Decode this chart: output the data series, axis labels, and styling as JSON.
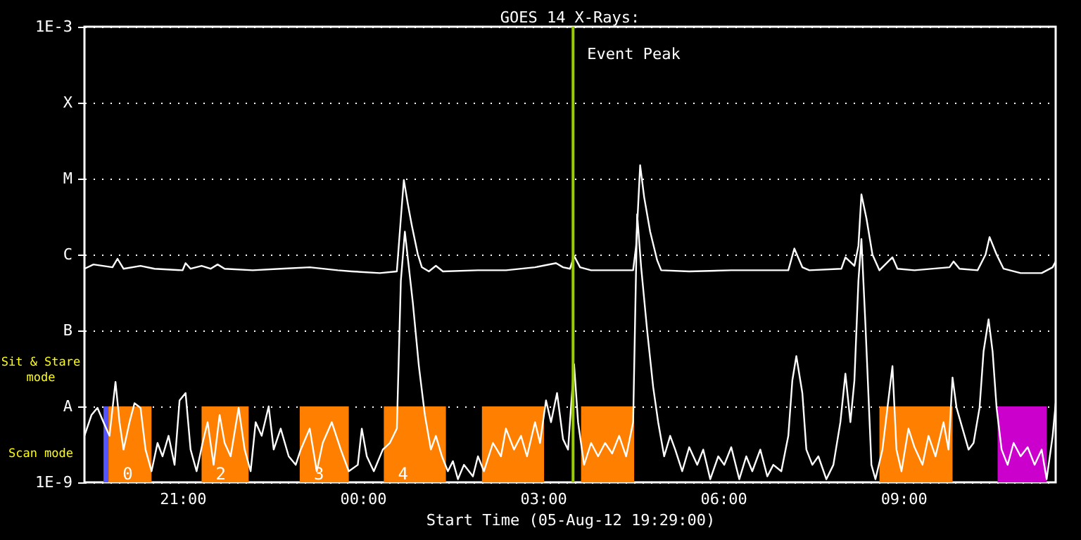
{
  "chart_data": {
    "type": "line",
    "title": "GOES 14 X-Rays:",
    "xlabel": "Start Time (05-Aug-12 19:29:00)",
    "xlim": [
      "--08-05T19:22",
      "--08-06T11:32"
    ],
    "xticks": [
      {
        "value": "--08-05T21:00",
        "label": "21:00"
      },
      {
        "value": "--08-06T00:00",
        "label": "00:00"
      },
      {
        "value": "--08-06T03:00",
        "label": "03:00"
      },
      {
        "value": "--08-06T06:00",
        "label": "06:00"
      },
      {
        "value": "--08-06T09:00",
        "label": "09:00"
      }
    ],
    "ylim": [
      1e-09,
      0.001
    ],
    "yticks": [
      {
        "value": 1e-09,
        "label": "1E-9"
      },
      {
        "value": 1e-08,
        "label": "A"
      },
      {
        "value": 1e-07,
        "label": "B"
      },
      {
        "value": 1e-06,
        "label": "C"
      },
      {
        "value": 1e-05,
        "label": "M"
      },
      {
        "value": 0.0001,
        "label": "X"
      },
      {
        "value": 0.001,
        "label": "1E-3"
      }
    ],
    "log": "y",
    "grid": "y",
    "series": [
      {
        "color": "#ffffff",
        "x": [
          "--08-05T19:22",
          "--08-05T19:31",
          "--08-05T19:50",
          "--08-05T19:55",
          "--08-05T20:01",
          "--08-05T20:18",
          "--08-05T20:32",
          "--08-05T21:00",
          "--08-05T21:03",
          "--08-05T21:08",
          "--08-05T21:19",
          "--08-05T21:28",
          "--08-05T21:35",
          "--08-05T21:42",
          "--08-05T22:10",
          "--08-05T22:38",
          "--08-05T23:07",
          "--08-05T23:35",
          "--08-05T23:49",
          "--08-06T00:17",
          "--08-06T00:34",
          "--08-06T00:38",
          "--08-06T00:41",
          "--08-06T00:45",
          "--08-06T00:49",
          "--08-06T00:55",
          "--08-06T00:59",
          "--08-06T01:06",
          "--08-06T01:13",
          "--08-06T01:20",
          "--08-06T01:55",
          "--08-06T02:23",
          "--08-06T02:52",
          "--08-06T03:13",
          "--08-06T03:20",
          "--08-06T03:27",
          "--08-06T03:31",
          "--08-06T03:37",
          "--08-06T03:48",
          "--08-06T04:30",
          "--08-06T04:33",
          "--08-06T04:37",
          "--08-06T04:41",
          "--08-06T04:47",
          "--08-06T04:54",
          "--08-06T04:58",
          "--08-06T05:26",
          "--08-06T06:08",
          "--08-06T07:05",
          "--08-06T07:11",
          "--08-06T07:19",
          "--08-06T07:26",
          "--08-06T07:58",
          "--08-06T08:02",
          "--08-06T08:11",
          "--08-06T08:15",
          "--08-06T08:18",
          "--08-06T08:23",
          "--08-06T08:29",
          "--08-06T08:36",
          "--08-06T08:49",
          "--08-06T08:54",
          "--08-06T09:11",
          "--08-06T09:46",
          "--08-06T09:50",
          "--08-06T09:56",
          "--08-06T10:14",
          "--08-06T10:22",
          "--08-06T10:26",
          "--08-06T10:33",
          "--08-06T10:40",
          "--08-06T10:57",
          "--08-06T11:18",
          "--08-06T11:29",
          "--08-06T11:32"
        ],
        "values": [
          6.5e-07,
          7.4e-07,
          6.8e-07,
          8.8e-07,
          6.5e-07,
          7.1e-07,
          6.5e-07,
          6.2e-07,
          7.7e-07,
          6.5e-07,
          7.1e-07,
          6.5e-07,
          7.4e-07,
          6.5e-07,
          6.2e-07,
          6.5e-07,
          6.8e-07,
          6.2e-07,
          6e-07,
          5.7e-07,
          6e-07,
          3e-06,
          9.6e-06,
          4.6e-06,
          2.4e-06,
          1e-06,
          6.8e-07,
          6e-07,
          7.1e-07,
          6e-07,
          6.2e-07,
          6.2e-07,
          6.8e-07,
          7.7e-07,
          6.8e-07,
          6.5e-07,
          9.6e-07,
          6.8e-07,
          6.2e-07,
          6.2e-07,
          1.3e-06,
          1.5e-05,
          5.7e-06,
          2e-06,
          8.4e-07,
          6.2e-07,
          6e-07,
          6.2e-07,
          6.2e-07,
          1.2e-06,
          6.8e-07,
          6.2e-07,
          6.5e-07,
          9.2e-07,
          7.1e-07,
          1.3e-06,
          6.2e-06,
          3e-06,
          1e-06,
          6.2e-07,
          9.2e-07,
          6.5e-07,
          6.2e-07,
          6.8e-07,
          8.1e-07,
          6.5e-07,
          6.2e-07,
          1e-06,
          1.7e-06,
          1e-06,
          6.5e-07,
          5.7e-07,
          5.7e-07,
          6.8e-07,
          8.1e-07
        ]
      },
      {
        "color": "#ffffff",
        "x": [
          "--08-05T19:22",
          "--08-05T19:29",
          "--08-05T19:35",
          "--08-05T19:41",
          "--08-05T19:47",
          "--08-05T19:53",
          "--08-05T19:57",
          "--08-05T20:01",
          "--08-05T20:07",
          "--08-05T20:12",
          "--08-05T20:18",
          "--08-05T20:23",
          "--08-05T20:29",
          "--08-05T20:35",
          "--08-05T20:40",
          "--08-05T20:46",
          "--08-05T20:52",
          "--08-05T20:57",
          "--08-05T21:03",
          "--08-05T21:08",
          "--08-05T21:14",
          "--08-05T21:20",
          "--08-05T21:25",
          "--08-05T21:31",
          "--08-05T21:37",
          "--08-05T21:42",
          "--08-05T21:48",
          "--08-05T21:56",
          "--08-05T22:02",
          "--08-05T22:08",
          "--08-05T22:13",
          "--08-05T22:19",
          "--08-05T22:26",
          "--08-05T22:31",
          "--08-05T22:38",
          "--08-05T22:46",
          "--08-05T22:53",
          "--08-05T22:58",
          "--08-05T23:07",
          "--08-05T23:14",
          "--08-05T23:20",
          "--08-05T23:29",
          "--08-05T23:38",
          "--08-05T23:46",
          "--08-05T23:55",
          "--08-05T23:59",
          "--08-06T00:04",
          "--08-06T00:11",
          "--08-06T00:20",
          "--08-06T00:27",
          "--08-06T00:34",
          "--08-06T00:38",
          "--08-06T00:42",
          "--08-06T00:46",
          "--08-06T00:50",
          "--08-06T00:56",
          "--08-06T01:02",
          "--08-06T01:08",
          "--08-06T01:13",
          "--08-06T01:19",
          "--08-06T01:25",
          "--08-06T01:30",
          "--08-06T01:35",
          "--08-06T01:41",
          "--08-06T01:50",
          "--08-06T01:55",
          "--08-06T02:01",
          "--08-06T02:10",
          "--08-06T02:18",
          "--08-06T02:23",
          "--08-06T02:31",
          "--08-06T02:38",
          "--08-06T02:44",
          "--08-06T02:52",
          "--08-06T02:57",
          "--08-06T03:03",
          "--08-06T03:08",
          "--08-06T03:14",
          "--08-06T03:20",
          "--08-06T03:25",
          "--08-06T03:31",
          "--08-06T03:35",
          "--08-06T03:41",
          "--08-06T03:48",
          "--08-06T03:55",
          "--08-06T04:02",
          "--08-06T04:09",
          "--08-06T04:16",
          "--08-06T04:23",
          "--08-06T04:30",
          "--08-06T04:34",
          "--08-06T04:38",
          "--08-06T04:44",
          "--08-06T04:50",
          "--08-06T04:55",
          "--08-06T05:01",
          "--08-06T05:07",
          "--08-06T05:12",
          "--08-06T05:19",
          "--08-06T05:26",
          "--08-06T05:34",
          "--08-06T05:40",
          "--08-06T05:47",
          "--08-06T05:55",
          "--08-06T06:01",
          "--08-06T06:08",
          "--08-06T06:16",
          "--08-06T06:23",
          "--08-06T06:29",
          "--08-06T06:37",
          "--08-06T06:44",
          "--08-06T06:50",
          "--08-06T06:58",
          "--08-06T07:05",
          "--08-06T07:09",
          "--08-06T07:13",
          "--08-06T07:19",
          "--08-06T07:23",
          "--08-06T07:29",
          "--08-06T07:35",
          "--08-06T07:43",
          "--08-06T07:50",
          "--08-06T07:57",
          "--08-06T08:02",
          "--08-06T08:07",
          "--08-06T08:11",
          "--08-06T08:15",
          "--08-06T08:18",
          "--08-06T08:22",
          "--08-06T08:28",
          "--08-06T08:32",
          "--08-06T08:39",
          "--08-06T08:44",
          "--08-06T08:49",
          "--08-06T08:53",
          "--08-06T08:58",
          "--08-06T09:05",
          "--08-06T09:11",
          "--08-06T09:19",
          "--08-06T09:25",
          "--08-06T09:32",
          "--08-06T09:40",
          "--08-06T09:45",
          "--08-06T09:49",
          "--08-06T09:53",
          "--08-06T09:59",
          "--08-06T10:05",
          "--08-06T10:10",
          "--08-06T10:16",
          "--08-06T10:20",
          "--08-06T10:25",
          "--08-06T10:29",
          "--08-06T10:33",
          "--08-06T10:38",
          "--08-06T10:44",
          "--08-06T10:50",
          "--08-06T10:57",
          "--08-06T11:04",
          "--08-06T11:11",
          "--08-06T11:18",
          "--08-06T11:23",
          "--08-06T11:29",
          "--08-06T11:32"
        ],
        "values": [
          4.1e-09,
          7.7e-09,
          9.6e-09,
          6.2e-09,
          4.1e-09,
          2.1e-08,
          6.2e-09,
          2.7e-09,
          6.2e-09,
          1.1e-08,
          9.6e-09,
          2.7e-09,
          1.4e-09,
          3.3e-09,
          2.2e-09,
          4.1e-09,
          1.7e-09,
          1.2e-08,
          1.5e-08,
          2.7e-09,
          1.4e-09,
          3.3e-09,
          6.2e-09,
          1.7e-09,
          7.7e-09,
          3.3e-09,
          2.2e-09,
          9.6e-09,
          2.7e-09,
          1.4e-09,
          6.2e-09,
          4.1e-09,
          1e-08,
          2.7e-09,
          5.1e-09,
          2.2e-09,
          1.7e-09,
          2.7e-09,
          5.1e-09,
          1.4e-09,
          3.3e-09,
          6.2e-09,
          2.7e-09,
          1.4e-09,
          1.7e-09,
          5.1e-09,
          2.2e-09,
          1.4e-09,
          2.7e-09,
          3.3e-09,
          5.1e-09,
          4.5e-07,
          2e-06,
          6.8e-07,
          2.3e-07,
          3.4e-08,
          7.7e-09,
          2.7e-09,
          4.1e-09,
          2.2e-09,
          1.4e-09,
          1.9e-09,
          1.1e-09,
          1.7e-09,
          1.2e-09,
          2.2e-09,
          1.4e-09,
          3.3e-09,
          2.2e-09,
          5.1e-09,
          2.7e-09,
          4.1e-09,
          2.2e-09,
          6.2e-09,
          3.3e-09,
          1.2e-08,
          6.2e-09,
          1.5e-08,
          3.7e-09,
          2.7e-09,
          3.6e-08,
          6.2e-09,
          1.7e-09,
          3.3e-09,
          2.2e-09,
          3.3e-09,
          2.4e-09,
          4.1e-09,
          2.2e-09,
          6.2e-09,
          3.4e-06,
          6.8e-07,
          1e-07,
          1.8e-08,
          6.2e-09,
          2.2e-09,
          4.1e-09,
          2.7e-09,
          1.4e-09,
          2.9e-09,
          1.7e-09,
          2.7e-09,
          1.1e-09,
          2.2e-09,
          1.7e-09,
          2.9e-09,
          1.1e-09,
          2.2e-09,
          1.4e-09,
          2.7e-09,
          1.2e-09,
          1.7e-09,
          1.4e-09,
          4.1e-09,
          2.2e-08,
          4.6e-08,
          1.5e-08,
          2.7e-09,
          1.7e-09,
          2.2e-09,
          1.1e-09,
          1.7e-09,
          6.2e-09,
          2.7e-08,
          6.2e-09,
          2.2e-08,
          4.5e-07,
          1.6e-06,
          1.2e-07,
          1.7e-09,
          1.1e-09,
          2.7e-09,
          9.6e-09,
          3.4e-08,
          2.7e-09,
          1.4e-09,
          5.1e-09,
          2.9e-09,
          1.7e-09,
          4.1e-09,
          2.2e-09,
          6.2e-09,
          2.7e-09,
          2.4e-08,
          9.6e-09,
          5.1e-09,
          2.7e-09,
          3.3e-09,
          9.6e-09,
          5.3e-08,
          1.4e-07,
          5.3e-08,
          9.6e-09,
          2.7e-09,
          1.7e-09,
          3.3e-09,
          2.2e-09,
          2.9e-09,
          1.7e-09,
          2.7e-09,
          1.1e-09,
          4.1e-09,
          1.1e-08
        ]
      }
    ],
    "bands": [
      {
        "axis": "x",
        "from": "--08-05T19:41",
        "to": "--08-05T19:46",
        "color": "#5555ff"
      },
      {
        "axis": "x",
        "from": "--08-05T19:46",
        "to": "--08-05T20:29",
        "color": "#ff8000",
        "label": "0"
      },
      {
        "axis": "x",
        "from": "--08-05T21:19",
        "to": "--08-05T22:06",
        "color": "#ff8000",
        "label": "2"
      },
      {
        "axis": "x",
        "from": "--08-05T22:57",
        "to": "--08-05T23:46",
        "color": "#ff8000",
        "label": "3"
      },
      {
        "axis": "x",
        "from": "--08-06T00:21",
        "to": "--08-06T01:23",
        "color": "#ff8000",
        "label": "4"
      },
      {
        "axis": "x",
        "from": "--08-06T01:59",
        "to": "--08-06T03:01",
        "color": "#ff8000"
      },
      {
        "axis": "x",
        "from": "--08-06T03:38",
        "to": "--08-06T04:31",
        "color": "#ff8000"
      },
      {
        "axis": "x",
        "from": "--08-06T08:36",
        "to": "--08-06T09:49",
        "color": "#ff8000"
      },
      {
        "axis": "x",
        "from": "--08-06T10:34",
        "to": "--08-06T11:23",
        "color": "#cc00cc"
      }
    ],
    "ref_lines": [
      {
        "axis": "x",
        "value": "--08-06T03:30",
        "label": "Event Peak",
        "color": "#99cc00"
      }
    ],
    "annotations": [
      "Sit & Stare mode",
      "Scan mode"
    ]
  }
}
